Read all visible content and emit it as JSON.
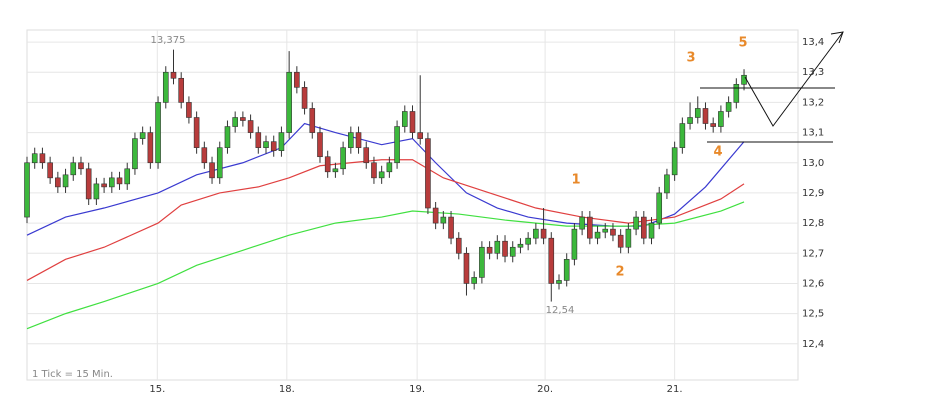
{
  "chart_data": {
    "type": "candlestick",
    "x": [
      0,
      1,
      2,
      3,
      4,
      5,
      6,
      7,
      8,
      9,
      10,
      11,
      12,
      13,
      14,
      15,
      16,
      17,
      18,
      19,
      20,
      21,
      22,
      23,
      24,
      25,
      26,
      27,
      28,
      29,
      30,
      31,
      32,
      33,
      34,
      35,
      36,
      37,
      38,
      39,
      40,
      41,
      42,
      43,
      44,
      45,
      46,
      47,
      48,
      49,
      50,
      51,
      52,
      53,
      54,
      55,
      56,
      57,
      58,
      59,
      60,
      61,
      62,
      63,
      64,
      65,
      66,
      67,
      68,
      69,
      70,
      71,
      72,
      73,
      74,
      75,
      76,
      77,
      78,
      79,
      80,
      81,
      82,
      83,
      84,
      85,
      86,
      87,
      88,
      89,
      90,
      91,
      92,
      93
    ],
    "open": [
      12.82,
      13.0,
      13.03,
      13.0,
      12.95,
      12.92,
      12.96,
      13.0,
      12.98,
      12.88,
      12.93,
      12.92,
      12.95,
      12.93,
      12.98,
      13.08,
      13.1,
      13.0,
      13.2,
      13.3,
      13.28,
      13.2,
      13.15,
      13.05,
      13.0,
      12.95,
      13.05,
      13.12,
      13.15,
      13.14,
      13.1,
      13.05,
      13.07,
      13.04,
      13.1,
      13.3,
      13.25,
      13.18,
      13.1,
      13.02,
      12.97,
      12.98,
      13.05,
      13.1,
      13.05,
      13.0,
      12.95,
      12.97,
      13.0,
      13.12,
      13.17,
      13.1,
      13.08,
      12.85,
      12.8,
      12.82,
      12.75,
      12.7,
      12.6,
      12.62,
      12.72,
      12.7,
      12.74,
      12.69,
      12.72,
      12.73,
      12.75,
      12.78,
      12.75,
      12.6,
      12.61,
      12.68,
      12.78,
      12.82,
      12.75,
      12.77,
      12.78,
      12.76,
      12.72,
      12.78,
      12.82,
      12.75,
      12.8,
      12.9,
      12.96,
      13.05,
      13.13,
      13.15,
      13.18,
      13.13,
      13.12,
      13.17,
      13.2,
      13.26
    ],
    "high": [
      13.02,
      13.05,
      13.05,
      13.02,
      12.97,
      12.98,
      13.02,
      13.02,
      13.0,
      12.95,
      12.95,
      12.97,
      12.97,
      13.0,
      13.1,
      13.12,
      13.12,
      13.22,
      13.32,
      13.375,
      13.3,
      13.22,
      13.17,
      13.07,
      13.02,
      13.07,
      13.14,
      13.17,
      13.17,
      13.16,
      13.12,
      13.09,
      13.09,
      13.12,
      13.37,
      13.32,
      13.27,
      13.2,
      13.12,
      13.04,
      13.0,
      13.07,
      13.12,
      13.12,
      13.07,
      13.02,
      12.99,
      13.02,
      13.14,
      13.19,
      13.19,
      13.29,
      13.1,
      12.87,
      12.84,
      12.84,
      12.77,
      12.72,
      12.64,
      12.74,
      12.74,
      12.76,
      12.76,
      12.74,
      12.75,
      12.77,
      12.8,
      12.85,
      12.77,
      12.63,
      12.7,
      12.8,
      12.84,
      12.84,
      12.79,
      12.8,
      12.8,
      12.78,
      12.8,
      12.84,
      12.84,
      12.82,
      12.92,
      12.98,
      13.07,
      13.15,
      13.2,
      13.22,
      13.2,
      13.15,
      13.19,
      13.22,
      13.28,
      13.31
    ],
    "low": [
      12.8,
      12.98,
      12.98,
      12.93,
      12.9,
      12.9,
      12.94,
      12.96,
      12.86,
      12.86,
      12.9,
      12.9,
      12.91,
      12.91,
      12.96,
      13.06,
      12.98,
      12.98,
      13.18,
      13.26,
      13.18,
      13.13,
      13.03,
      12.98,
      12.93,
      12.93,
      13.03,
      13.1,
      13.12,
      13.08,
      13.03,
      13.03,
      13.02,
      13.02,
      13.08,
      13.23,
      13.16,
      13.08,
      13.0,
      12.95,
      12.95,
      12.96,
      13.03,
      13.03,
      12.98,
      12.93,
      12.93,
      12.95,
      12.98,
      13.1,
      13.08,
      13.06,
      12.83,
      12.78,
      12.78,
      12.73,
      12.68,
      12.56,
      12.58,
      12.6,
      12.68,
      12.68,
      12.67,
      12.67,
      12.7,
      12.71,
      12.73,
      12.73,
      12.54,
      12.58,
      12.59,
      12.66,
      12.76,
      12.73,
      12.73,
      12.75,
      12.74,
      12.7,
      12.7,
      12.76,
      12.73,
      12.73,
      12.78,
      12.88,
      12.94,
      13.03,
      13.11,
      13.13,
      13.11,
      13.1,
      13.1,
      13.15,
      13.18,
      13.24
    ],
    "close": [
      13.0,
      13.03,
      13.0,
      12.95,
      12.92,
      12.96,
      13.0,
      12.98,
      12.88,
      12.93,
      12.92,
      12.95,
      12.93,
      12.98,
      13.08,
      13.1,
      13.0,
      13.2,
      13.3,
      13.28,
      13.2,
      13.15,
      13.05,
      13.0,
      12.95,
      13.05,
      13.12,
      13.15,
      13.14,
      13.1,
      13.05,
      13.07,
      13.04,
      13.1,
      13.3,
      13.25,
      13.18,
      13.1,
      13.02,
      12.97,
      12.98,
      13.05,
      13.1,
      13.05,
      13.0,
      12.95,
      12.97,
      13.0,
      13.12,
      13.17,
      13.1,
      13.08,
      12.85,
      12.8,
      12.82,
      12.75,
      12.7,
      12.6,
      12.62,
      12.72,
      12.7,
      12.74,
      12.69,
      12.72,
      12.73,
      12.75,
      12.78,
      12.75,
      12.6,
      12.61,
      12.68,
      12.78,
      12.82,
      12.75,
      12.77,
      12.78,
      12.76,
      12.72,
      12.78,
      12.82,
      12.75,
      12.8,
      12.9,
      12.96,
      13.05,
      13.13,
      13.15,
      13.18,
      13.13,
      13.12,
      13.17,
      13.2,
      13.26,
      13.29
    ],
    "up_color": "#3cb83c",
    "down_color": "#b83c3c",
    "lines": [
      {
        "color": "#3a3ad0",
        "x": [
          0,
          5,
          10,
          17,
          22,
          28,
          33,
          36,
          40,
          46,
          50,
          53,
          57,
          61,
          65,
          70,
          76,
          80,
          84,
          88,
          93
        ],
        "values": [
          12.76,
          12.82,
          12.85,
          12.9,
          12.96,
          13.0,
          13.05,
          13.13,
          13.1,
          13.06,
          13.08,
          13.0,
          12.9,
          12.85,
          12.82,
          12.8,
          12.79,
          12.79,
          12.83,
          12.92,
          13.07
        ]
      },
      {
        "color": "#e04040",
        "x": [
          0,
          5,
          10,
          17,
          20,
          25,
          30,
          34,
          38,
          46,
          50,
          54,
          60,
          66,
          72,
          78,
          84,
          90,
          93
        ],
        "values": [
          12.61,
          12.68,
          12.72,
          12.8,
          12.86,
          12.9,
          12.92,
          12.95,
          12.99,
          13.01,
          13.01,
          12.95,
          12.9,
          12.85,
          12.82,
          12.8,
          12.82,
          12.88,
          12.93
        ]
      },
      {
        "color": "#40e040",
        "x": [
          0,
          5,
          10,
          17,
          22,
          28,
          34,
          40,
          46,
          50,
          56,
          62,
          70,
          78,
          84,
          90,
          93
        ],
        "values": [
          12.45,
          12.5,
          12.54,
          12.6,
          12.66,
          12.71,
          12.76,
          12.8,
          12.82,
          12.84,
          12.83,
          12.81,
          12.79,
          12.79,
          12.8,
          12.84,
          12.87
        ]
      }
    ],
    "xlim": [
      0,
      100
    ],
    "xticks": [
      {
        "value": 16.9,
        "label": "15."
      },
      {
        "value": 33.7,
        "label": "18."
      },
      {
        "value": 50.6,
        "label": "19."
      },
      {
        "value": 67.2,
        "label": "20."
      },
      {
        "value": 84.0,
        "label": "21."
      }
    ],
    "ylim": [
      12.28,
      13.44
    ],
    "yticks": [
      {
        "value": 12.4,
        "label": "12,4"
      },
      {
        "value": 12.5,
        "label": "12,5"
      },
      {
        "value": 12.6,
        "label": "12,6"
      },
      {
        "value": 12.7,
        "label": "12,7"
      },
      {
        "value": 12.8,
        "label": "12,8"
      },
      {
        "value": 12.9,
        "label": "12,9"
      },
      {
        "value": 13.0,
        "label": "13,0"
      },
      {
        "value": 13.1,
        "label": "13,1"
      },
      {
        "value": 13.2,
        "label": "13,2"
      },
      {
        "value": 13.3,
        "label": "13,3"
      },
      {
        "value": 13.4,
        "label": "13,4"
      }
    ],
    "grid": true,
    "annotations": [
      "13,375",
      "12,54",
      "1",
      "2",
      "3",
      "4",
      "5",
      "1 Tick = 15 Min."
    ]
  }
}
